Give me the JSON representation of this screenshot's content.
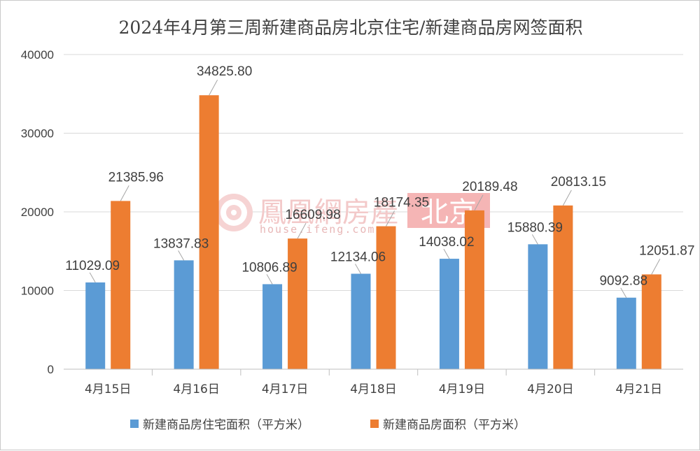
{
  "chart_data": {
    "type": "bar",
    "title": "2024年4月第三周新建商品房北京住宅/新建商品房网签面积",
    "categories": [
      "4月15日",
      "4月16日",
      "4月17日",
      "4月18日",
      "4月19日",
      "4月20日",
      "4月21日"
    ],
    "series": [
      {
        "name": "新建商品房住宅面积（平方米）",
        "color": "#5b9bd5",
        "values": [
          11029.09,
          13837.83,
          10806.89,
          12134.06,
          14038.02,
          15880.39,
          9092.88
        ],
        "labels": [
          "11029.09",
          "13837.83",
          "10806.89",
          "12134.06",
          "14038.02",
          "15880.39",
          "9092.88"
        ]
      },
      {
        "name": "新建商品房面积（平方米）",
        "color": "#ed7d31",
        "values": [
          21385.96,
          34825.8,
          16609.98,
          18174.35,
          20189.48,
          20813.15,
          12051.87
        ],
        "labels": [
          "21385.96",
          "34825.80",
          "16609.98",
          "18174.35",
          "20189.48",
          "20813.15",
          "12051.87"
        ]
      }
    ],
    "ylim": [
      0,
      40000
    ],
    "yticks": [
      0,
      10000,
      20000,
      30000,
      40000
    ],
    "grid": true,
    "legend_position": "bottom"
  },
  "watermark": {
    "brand": "鳳凰網房產",
    "site": "house.ifeng.com",
    "tag": "北京"
  }
}
